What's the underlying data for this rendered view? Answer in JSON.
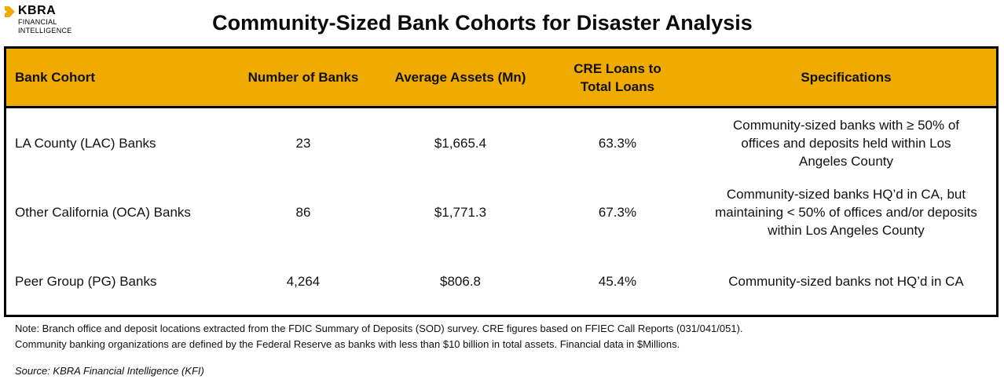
{
  "brand": {
    "name": "KBRA",
    "subtitle_line1": "FINANCIAL",
    "subtitle_line2": "INTELLIGENCE",
    "accent": "#f0ab00"
  },
  "title": "Community-Sized Bank Cohorts for Disaster Analysis",
  "table": {
    "headers": {
      "cohort": "Bank Cohort",
      "count": "Number of Banks",
      "assets": "Average Assets (Mn)",
      "cre": "CRE Loans to Total Loans",
      "specs": "Specifications"
    },
    "rows": [
      {
        "cohort": "LA County (LAC) Banks",
        "count": "23",
        "assets": "$1,665.4",
        "cre": "63.3%",
        "specs": "Community-sized banks with ≥ 50% of offices and deposits held within Los Angeles County"
      },
      {
        "cohort": "Other California (OCA) Banks",
        "count": "86",
        "assets": "$1,771.3",
        "cre": "67.3%",
        "specs": "Community-sized banks HQ’d in CA, but maintaining < 50% of offices and/or deposits within Los Angeles County"
      },
      {
        "cohort": "Peer Group (PG) Banks",
        "count": "4,264",
        "assets": "$806.8",
        "cre": "45.4%",
        "specs": "Community-sized banks not HQ’d in CA"
      }
    ]
  },
  "notes": {
    "line1": "Note: Branch office and deposit locations extracted from the FDIC Summary of Deposits (SOD) survey. CRE figures based on FFIEC Call Reports (031/041/051).",
    "line2": "Community banking organizations are defined by the Federal Reserve as banks with less than $10 billion in total assets. Financial data in $Millions.",
    "source": "Source: KBRA Financial Intelligence (KFI)"
  }
}
